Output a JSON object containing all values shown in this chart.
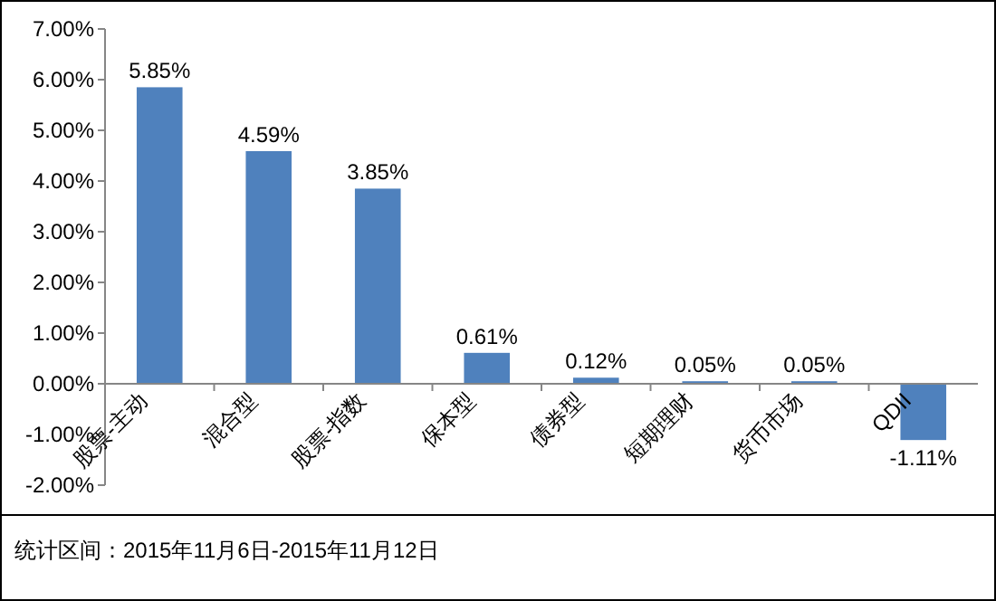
{
  "chart_data": {
    "type": "bar",
    "categories": [
      "股票-主动",
      "混合型",
      "股票-指数",
      "保本型",
      "债券型",
      "短期理财",
      "货币市场",
      "QDII"
    ],
    "values": [
      5.85,
      4.59,
      3.85,
      0.61,
      0.12,
      0.05,
      0.05,
      -1.11
    ],
    "color": "#4f81bd",
    "value_labels": [
      "5.85%",
      "4.59%",
      "3.85%",
      "0.61%",
      "0.12%",
      "0.05%",
      "0.05%",
      "-1.11%"
    ],
    "ylim": [
      -2,
      7
    ],
    "yticks": [
      {
        "value": -2,
        "label": "-2.00%"
      },
      {
        "value": -1,
        "label": "-1.00%"
      },
      {
        "value": 0,
        "label": "0.00%"
      },
      {
        "value": 1,
        "label": "1.00%"
      },
      {
        "value": 2,
        "label": "2.00%"
      },
      {
        "value": 3,
        "label": "3.00%"
      },
      {
        "value": 4,
        "label": "4.00%"
      },
      {
        "value": 5,
        "label": "5.00%"
      },
      {
        "value": 6,
        "label": "6.00%"
      },
      {
        "value": 7,
        "label": "7.00%"
      }
    ],
    "grid": false,
    "annotations": [
      "统计区间：2015年11月6日-2015年11月12日"
    ]
  }
}
